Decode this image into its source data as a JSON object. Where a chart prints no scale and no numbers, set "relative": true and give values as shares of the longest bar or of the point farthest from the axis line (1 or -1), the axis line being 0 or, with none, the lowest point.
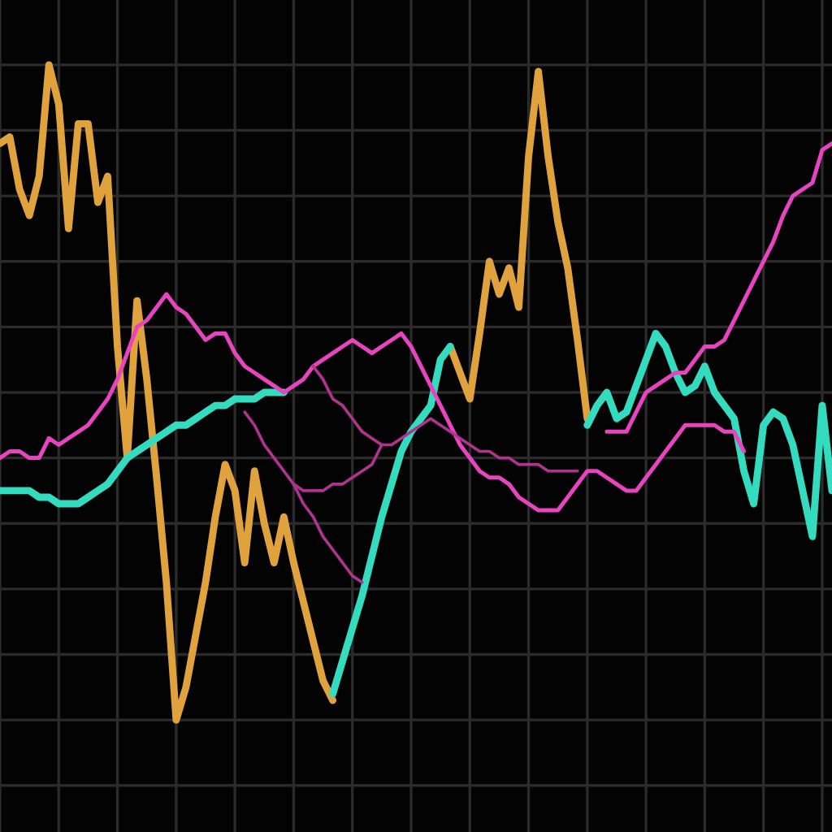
{
  "chart_data": {
    "type": "line",
    "relative": true,
    "grid": true,
    "categories": [
      null,
      null,
      null,
      null,
      null,
      null,
      null,
      null,
      null,
      null,
      null,
      null,
      null,
      null,
      null,
      null,
      null,
      null,
      null,
      null,
      null,
      null,
      null,
      null,
      null,
      null,
      null,
      null,
      null,
      null,
      null,
      null,
      null,
      null,
      null,
      null,
      null,
      null,
      null,
      null,
      null,
      null,
      null,
      null,
      null,
      null,
      null,
      null,
      null,
      null,
      null,
      null,
      null,
      null,
      null,
      null,
      null,
      null,
      null,
      null,
      null,
      null,
      null,
      null,
      null,
      null,
      null,
      null,
      null,
      null,
      null,
      null,
      null,
      null,
      null,
      null,
      null,
      null,
      null,
      null,
      null,
      null,
      null,
      null,
      null,
      null
    ],
    "series": [
      {
        "color": "#e0a23c",
        "values": [
          0.88,
          0.89,
          0.81,
          0.77,
          0.83,
          1.0,
          0.94,
          0.75,
          0.91,
          0.91,
          0.79,
          0.83,
          0.57,
          0.4,
          0.64,
          0.52,
          0.37,
          0.21,
          0,
          0.05,
          0.13,
          0.21,
          0.31,
          0.39,
          0.35,
          0.24,
          0.38,
          0.3,
          0.24,
          0.31,
          0.24,
          0.18,
          0.12,
          0.06,
          0.03,
          null,
          null,
          null,
          null,
          null,
          null,
          null,
          null,
          null,
          null,
          null,
          0.57,
          0.53,
          0.49,
          0.59,
          0.7,
          0.65,
          0.69,
          0.63,
          0.86,
          0.99,
          0.86,
          0.76,
          0.69,
          0.58,
          0.46,
          null,
          null,
          null,
          null,
          null,
          null,
          null,
          null,
          null,
          null,
          null,
          null,
          null,
          null,
          null,
          null,
          null,
          null,
          null,
          null,
          null,
          null,
          null,
          null,
          null
        ]
      },
      {
        "color": "#34dcbf",
        "values": [
          0.35,
          0.35,
          0.35,
          0.35,
          0.34,
          0.34,
          0.33,
          0.33,
          0.33,
          0.34,
          0.35,
          0.36,
          0.38,
          0.4,
          0.41,
          0.42,
          0.43,
          0.44,
          0.45,
          0.45,
          0.46,
          0.47,
          0.48,
          0.48,
          0.49,
          0.49,
          0.49,
          0.5,
          0.5,
          0.5,
          null,
          null,
          null,
          null,
          0.04,
          0.09,
          0.14,
          0.19,
          0.25,
          0.31,
          0.36,
          0.41,
          0.44,
          0.46,
          0.48,
          0.55,
          0.57,
          null,
          null,
          null,
          null,
          null,
          null,
          null,
          null,
          null,
          null,
          null,
          null,
          null,
          0.45,
          0.48,
          0.5,
          0.46,
          0.47,
          0.51,
          0.55,
          0.59,
          0.57,
          0.53,
          0.5,
          0.51,
          0.54,
          0.5,
          0.48,
          0.46,
          0.38,
          0.33,
          0.45,
          0.47,
          0.46,
          0.42,
          0.35,
          0.28,
          0.48,
          0.35
        ]
      },
      {
        "color": "#e844c0",
        "values": [
          0.4,
          0.41,
          0.41,
          0.4,
          0.4,
          0.43,
          0.42,
          0.43,
          0.44,
          0.45,
          0.47,
          0.49,
          0.52,
          0.56,
          0.6,
          0.61,
          0.63,
          0.65,
          0.63,
          0.62,
          0.6,
          0.58,
          0.59,
          0.59,
          0.56,
          0.54,
          0.53,
          0.52,
          0.51,
          0.5,
          0.51,
          0.52,
          0.54,
          0.55,
          0.56,
          0.57,
          0.58,
          0.57,
          0.56,
          0.57,
          0.58,
          0.59,
          0.57,
          0.54,
          0.51,
          0.48,
          0.45,
          0.42,
          0.4,
          0.38,
          0.37,
          0.37,
          0.36,
          0.34,
          0.33,
          0.32,
          0.32,
          0.32,
          0.34,
          0.36,
          0.38,
          0.38,
          0.37,
          0.36,
          0.35,
          0.35,
          0.37,
          0.39,
          0.41,
          0.43,
          0.45,
          0.45,
          0.45,
          0.45,
          0.44,
          0.44,
          0.41,
          null,
          null,
          null,
          null,
          null,
          null,
          null,
          null,
          null
        ]
      },
      {
        "color": "#e844c0",
        "values": [
          null,
          null,
          null,
          null,
          null,
          null,
          null,
          null,
          null,
          null,
          null,
          null,
          null,
          null,
          null,
          null,
          null,
          null,
          null,
          null,
          null,
          null,
          null,
          null,
          null,
          null,
          null,
          null,
          null,
          null,
          null,
          null,
          null,
          null,
          null,
          null,
          null,
          null,
          null,
          null,
          null,
          null,
          null,
          null,
          null,
          null,
          null,
          null,
          null,
          null,
          null,
          null,
          null,
          null,
          null,
          null,
          null,
          null,
          null,
          null,
          null,
          null,
          0.44,
          0.44,
          0.44,
          0.47,
          0.5,
          0.51,
          0.52,
          0.53,
          0.53,
          0.55,
          0.57,
          0.57,
          0.58,
          0.61,
          0.64,
          0.67,
          0.7,
          0.73,
          0.77,
          0.8,
          0.81,
          0.82,
          0.87,
          0.88
        ]
      },
      {
        "color": "#b0338f",
        "values": [
          null,
          null,
          null,
          null,
          null,
          null,
          null,
          null,
          null,
          null,
          null,
          null,
          null,
          null,
          null,
          null,
          null,
          null,
          null,
          null,
          null,
          null,
          null,
          null,
          null,
          0.47,
          0.45,
          0.42,
          0.4,
          0.38,
          0.36,
          0.33,
          0.31,
          0.28,
          0.26,
          0.24,
          0.22,
          0.21,
          null,
          null,
          null,
          null,
          null,
          null,
          null,
          null,
          null,
          null,
          null,
          null,
          null,
          null,
          null,
          null,
          null,
          null,
          null,
          null,
          null,
          null,
          null,
          null,
          null,
          null,
          null,
          null,
          null,
          null,
          null,
          null,
          null,
          null,
          null,
          null,
          null,
          null,
          null,
          null,
          null,
          null,
          null,
          null,
          null,
          null,
          null,
          null
        ]
      },
      {
        "color": "#b0338f",
        "values": [
          null,
          null,
          null,
          null,
          null,
          null,
          null,
          null,
          null,
          null,
          null,
          null,
          null,
          null,
          null,
          null,
          null,
          null,
          null,
          null,
          null,
          null,
          null,
          null,
          null,
          null,
          null,
          null,
          null,
          null,
          null,
          null,
          0.54,
          0.52,
          0.49,
          0.48,
          0.46,
          0.44,
          0.43,
          0.42,
          0.42,
          0.43,
          0.44,
          0.45,
          0.46,
          0.45,
          0.44,
          0.43,
          0.42,
          0.41,
          0.41,
          0.4,
          0.4,
          0.39,
          0.39,
          0.39,
          0.38,
          0.38,
          0.38,
          0.38,
          null,
          null,
          null,
          null,
          null,
          null,
          null,
          null,
          null,
          null,
          null,
          null,
          null,
          null,
          null,
          null,
          null,
          null,
          null,
          null,
          null,
          null,
          null,
          null,
          null,
          null
        ]
      },
      {
        "color": "#b0338f",
        "values": [
          null,
          null,
          null,
          null,
          null,
          null,
          null,
          null,
          null,
          null,
          null,
          null,
          null,
          null,
          null,
          null,
          null,
          null,
          null,
          null,
          null,
          null,
          null,
          null,
          null,
          null,
          null,
          null,
          null,
          null,
          0.36,
          0.35,
          0.35,
          0.35,
          0.36,
          0.36,
          0.37,
          0.38,
          0.39,
          0.42,
          null,
          null,
          null,
          null,
          null,
          null,
          null,
          null,
          null,
          null,
          null,
          null,
          null,
          null,
          null,
          null,
          null,
          null,
          null,
          null,
          null,
          null,
          null,
          null,
          null,
          null,
          null,
          null,
          null,
          null,
          null,
          null,
          null,
          null,
          null,
          null,
          null,
          null,
          null,
          null,
          null,
          null,
          null,
          null,
          null,
          null
        ]
      }
    ]
  }
}
